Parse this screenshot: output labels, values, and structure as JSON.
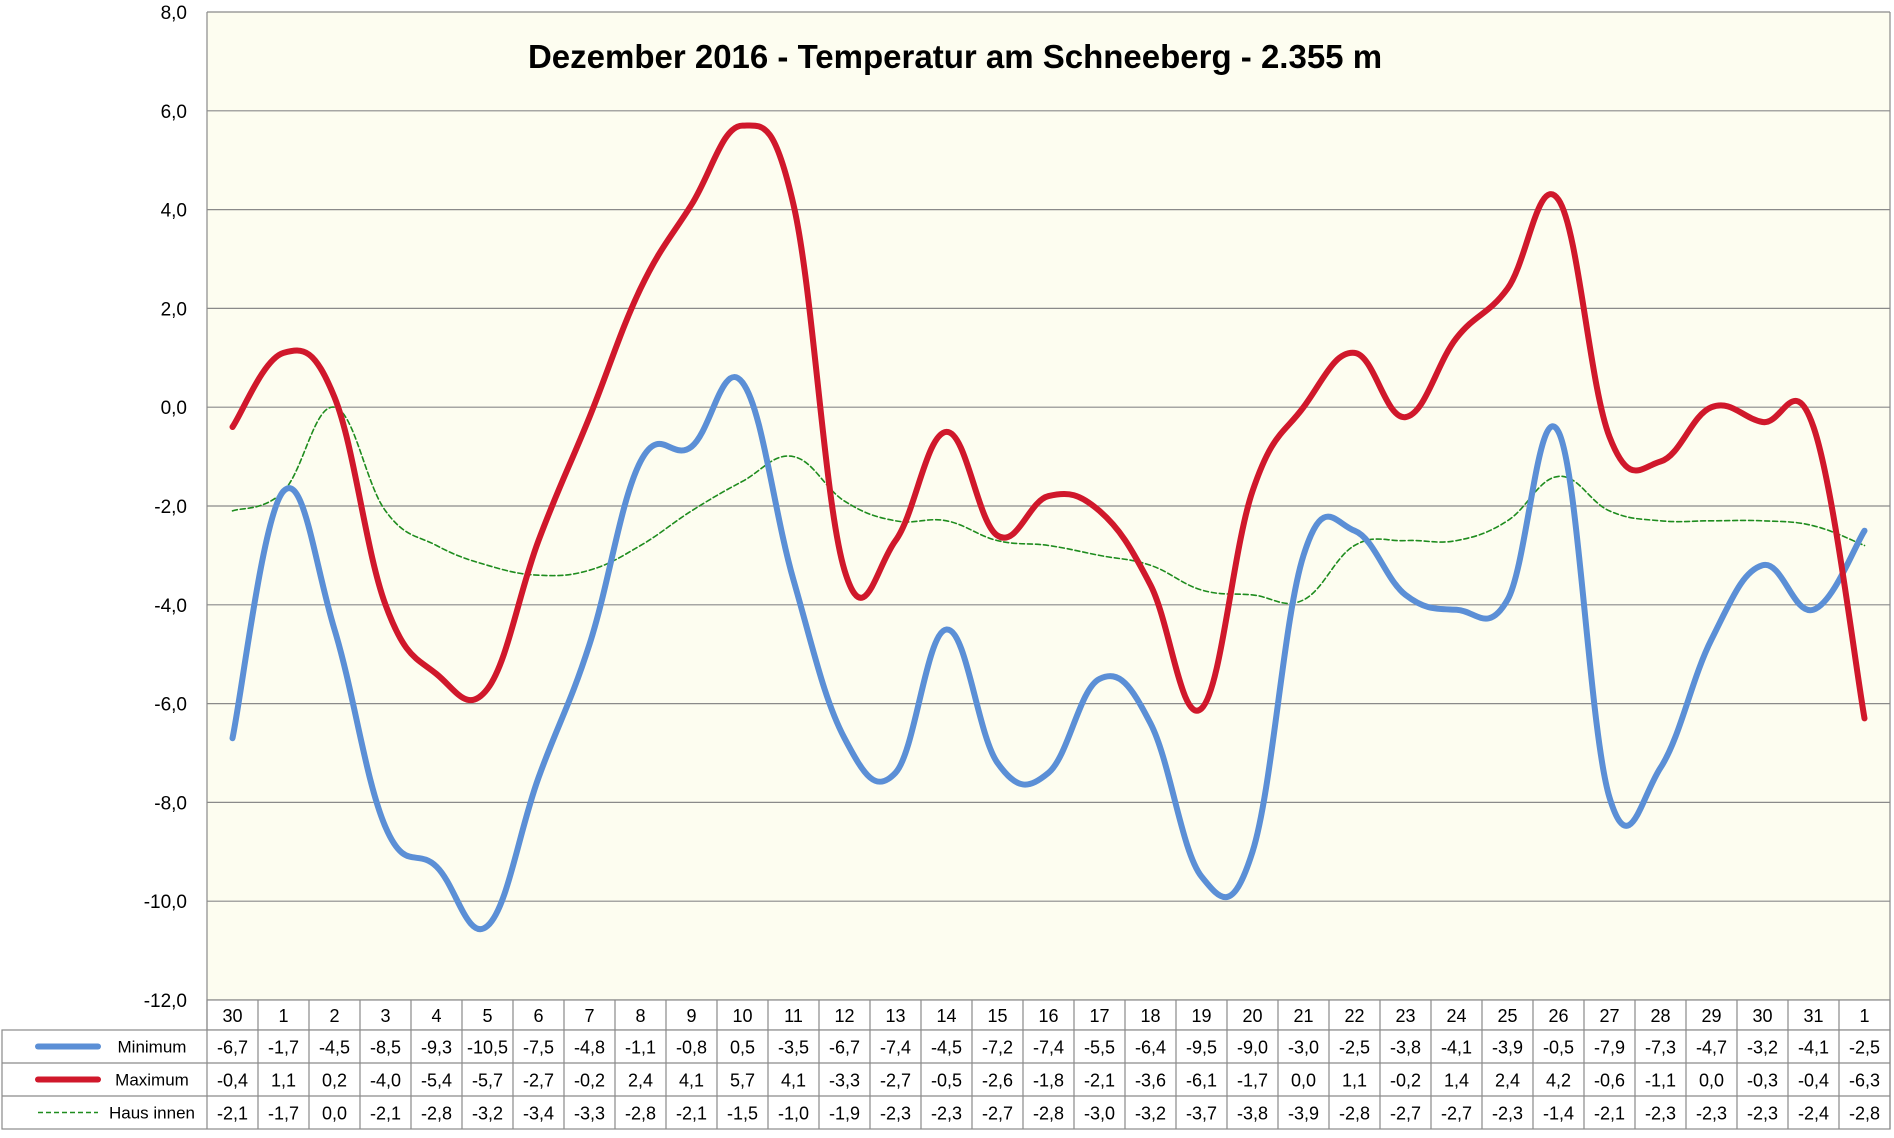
{
  "chart_data": {
    "type": "line",
    "title": "Dezember 2016 - Temperatur am Schneeberg - 2.355 m",
    "categories": [
      "30",
      "1",
      "2",
      "3",
      "4",
      "5",
      "6",
      "7",
      "8",
      "9",
      "10",
      "11",
      "12",
      "13",
      "14",
      "15",
      "16",
      "17",
      "18",
      "19",
      "20",
      "21",
      "22",
      "23",
      "24",
      "25",
      "26",
      "27",
      "28",
      "29",
      "30",
      "31",
      "1"
    ],
    "ylim": [
      -12,
      8
    ],
    "yticks": [
      "8,0",
      "6,0",
      "4,0",
      "2,0",
      "0,0",
      "-2,0",
      "-4,0",
      "-6,0",
      "-8,0",
      "-10,0",
      "-12,0"
    ],
    "grid": true,
    "series": [
      {
        "name": "Minimum",
        "color": "#5b8fd6",
        "style": "solid-thick",
        "values": [
          -6.7,
          -1.7,
          -4.5,
          -8.5,
          -9.3,
          -10.5,
          -7.5,
          -4.8,
          -1.1,
          -0.8,
          0.5,
          -3.5,
          -6.7,
          -7.4,
          -4.5,
          -7.2,
          -7.4,
          -5.5,
          -6.4,
          -9.5,
          -9.0,
          -3.0,
          -2.5,
          -3.8,
          -4.1,
          -3.9,
          -0.5,
          -7.9,
          -7.3,
          -4.7,
          -3.2,
          -4.1,
          -2.5
        ],
        "labels": [
          "-6,7",
          "-1,7",
          "-4,5",
          "-8,5",
          "-9,3",
          "-10,5",
          "-7,5",
          "-4,8",
          "-1,1",
          "-0,8",
          "0,5",
          "-3,5",
          "-6,7",
          "-7,4",
          "-4,5",
          "-7,2",
          "-7,4",
          "-5,5",
          "-6,4",
          "-9,5",
          "-9,0",
          "-3,0",
          "-2,5",
          "-3,8",
          "-4,1",
          "-3,9",
          "-0,5",
          "-7,9",
          "-7,3",
          "-4,7",
          "-3,2",
          "-4,1",
          "-2,5"
        ]
      },
      {
        "name": "Maximum",
        "color": "#d0182b",
        "style": "solid-thick",
        "values": [
          -0.4,
          1.1,
          0.2,
          -4.0,
          -5.4,
          -5.7,
          -2.7,
          -0.2,
          2.4,
          4.1,
          5.7,
          4.1,
          -3.3,
          -2.7,
          -0.5,
          -2.6,
          -1.8,
          -2.1,
          -3.6,
          -6.1,
          -1.7,
          0.0,
          1.1,
          -0.2,
          1.4,
          2.4,
          4.2,
          -0.6,
          -1.1,
          0.0,
          -0.3,
          -0.4,
          -6.3
        ],
        "labels": [
          "-0,4",
          "1,1",
          "0,2",
          "-4,0",
          "-5,4",
          "-5,7",
          "-2,7",
          "-0,2",
          "2,4",
          "4,1",
          "5,7",
          "4,1",
          "-3,3",
          "-2,7",
          "-0,5",
          "-2,6",
          "-1,8",
          "-2,1",
          "-3,6",
          "-6,1",
          "-1,7",
          "0,0",
          "1,1",
          "-0,2",
          "1,4",
          "2,4",
          "4,2",
          "-0,6",
          "-1,1",
          "0,0",
          "-0,3",
          "-0,4",
          "-6,3"
        ]
      },
      {
        "name": "Haus innen",
        "color": "#1e8c1e",
        "style": "dashed-thin",
        "values": [
          -2.1,
          -1.7,
          0.0,
          -2.1,
          -2.8,
          -3.2,
          -3.4,
          -3.3,
          -2.8,
          -2.1,
          -1.5,
          -1.0,
          -1.9,
          -2.3,
          -2.3,
          -2.7,
          -2.8,
          -3.0,
          -3.2,
          -3.7,
          -3.8,
          -3.9,
          -2.8,
          -2.7,
          -2.7,
          -2.3,
          -1.4,
          -2.1,
          -2.3,
          -2.3,
          -2.3,
          -2.4,
          -2.8
        ],
        "labels": [
          "-2,1",
          "-1,7",
          "0,0",
          "-2,1",
          "-2,8",
          "-3,2",
          "-3,4",
          "-3,3",
          "-2,8",
          "-2,1",
          "-1,5",
          "-1,0",
          "-1,9",
          "-2,3",
          "-2,3",
          "-2,7",
          "-2,8",
          "-3,0",
          "-3,2",
          "-3,7",
          "-3,8",
          "-3,9",
          "-2,8",
          "-2,7",
          "-2,7",
          "-2,3",
          "-1,4",
          "-2,1",
          "-2,3",
          "-2,3",
          "-2,3",
          "-2,4",
          "-2,8"
        ]
      }
    ]
  }
}
